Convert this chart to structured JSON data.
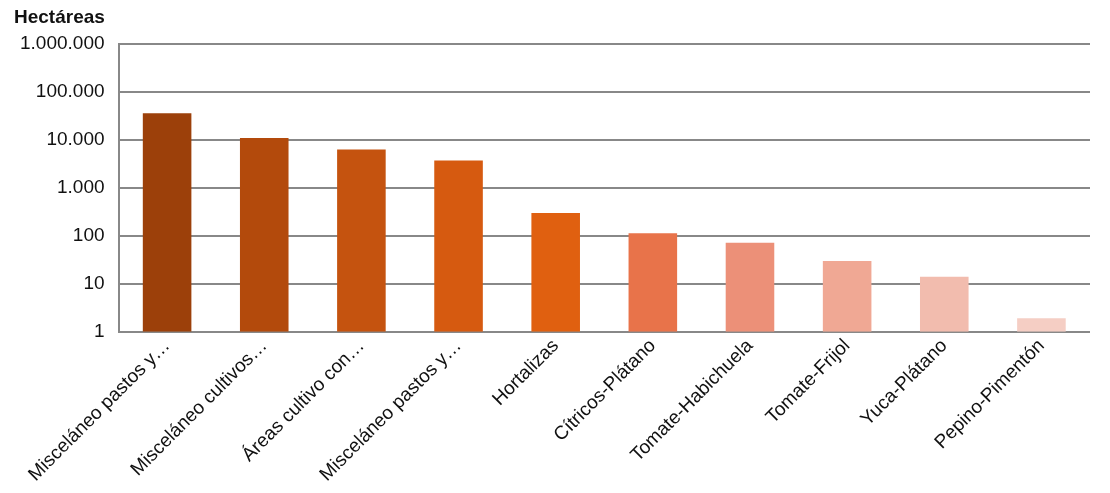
{
  "chart_data": {
    "type": "bar",
    "ylabel": "Hectáreas",
    "categories": [
      "Misceláneo pastos y…",
      "Misceláneo cultivos…",
      "Áreas cultivo con…",
      "Misceláneo pastos y…",
      "Hortalizas",
      "Cítricos-Plátano",
      "Tomate-Habichuela",
      "Tomate-Frijol",
      "Yuca-Plátano",
      "Pepino-Pimentón"
    ],
    "values": [
      36000,
      11000,
      6300,
      3700,
      300,
      113,
      72,
      30,
      14,
      1.9
    ],
    "colors": [
      "#9c400a",
      "#b34a0c",
      "#c5530f",
      "#d65a10",
      "#e06010",
      "#e8734a",
      "#ec9078",
      "#f0a894",
      "#f2bcae",
      "#f5cec4"
    ],
    "log": "y",
    "ylim": [
      1,
      1000000
    ],
    "yticks": [
      1,
      10,
      100,
      {
        "value": 1000,
        "label": "1.000"
      },
      {
        "value": 10000,
        "label": "10.000"
      },
      {
        "value": 100000,
        "label": "100.000"
      },
      {
        "value": 1000000,
        "label": "1.000.000"
      }
    ],
    "grid": "y",
    "legend": false
  }
}
